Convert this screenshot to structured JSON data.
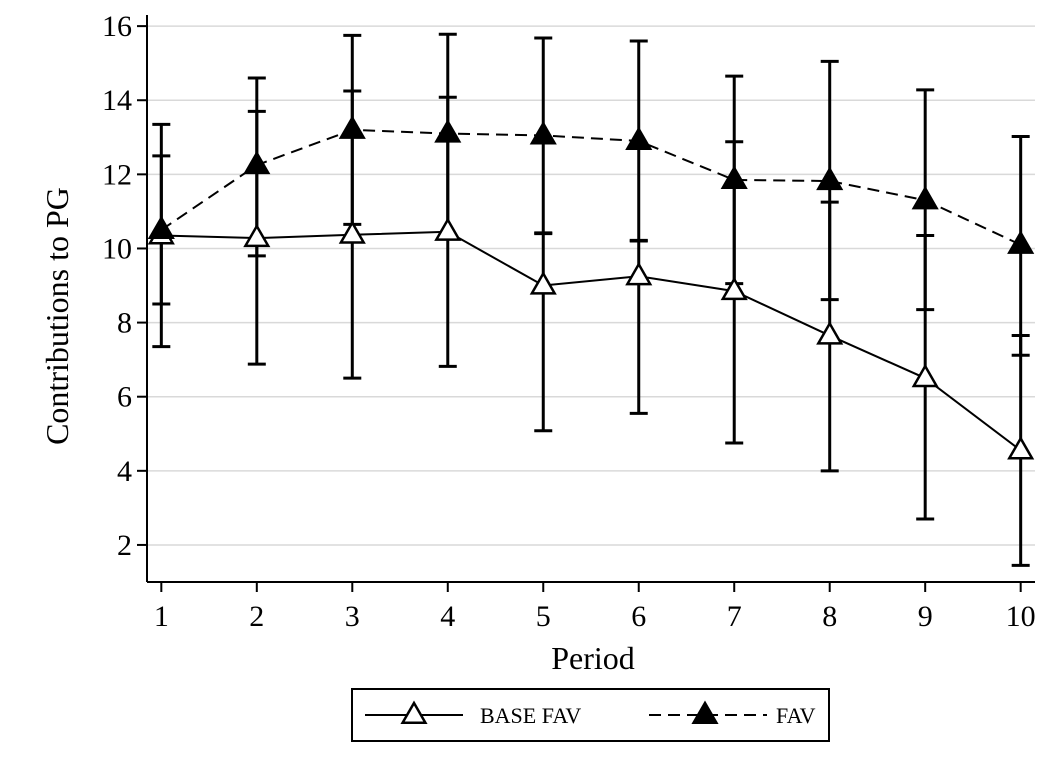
{
  "chart_data": {
    "type": "line",
    "xlabel": "Period",
    "ylabel": "Contributions to PG",
    "x": [
      1,
      2,
      3,
      4,
      5,
      6,
      7,
      8,
      9,
      10
    ],
    "xlim": [
      0.85,
      10.15
    ],
    "ylim": [
      1.0,
      16.3
    ],
    "yticks": [
      2,
      4,
      6,
      8,
      10,
      12,
      14,
      16
    ],
    "grid": true,
    "legend_position": "bottom",
    "series": [
      {
        "name": "BASE FAV",
        "marker": "hollow-triangle",
        "line_style": "solid",
        "values": [
          10.35,
          10.28,
          10.37,
          10.45,
          9.0,
          9.25,
          8.85,
          7.65,
          6.5,
          4.55
        ],
        "error_low": [
          7.35,
          6.88,
          6.5,
          6.82,
          5.08,
          5.55,
          4.75,
          4.0,
          2.7,
          1.45
        ],
        "error_high": [
          13.35,
          13.7,
          14.25,
          14.08,
          10.42,
          10.22,
          12.88,
          11.25,
          10.35,
          7.65
        ]
      },
      {
        "name": "FAV",
        "marker": "filled-triangle",
        "line_style": "dashed",
        "values": [
          10.5,
          12.25,
          13.2,
          13.1,
          13.05,
          12.9,
          11.85,
          11.82,
          11.3,
          10.1
        ],
        "error_low": [
          8.5,
          9.8,
          10.65,
          10.35,
          10.4,
          10.2,
          9.05,
          8.62,
          8.35,
          7.12
        ],
        "error_high": [
          12.5,
          14.6,
          15.75,
          15.78,
          15.68,
          15.6,
          14.65,
          15.05,
          14.28,
          13.02
        ]
      }
    ]
  }
}
